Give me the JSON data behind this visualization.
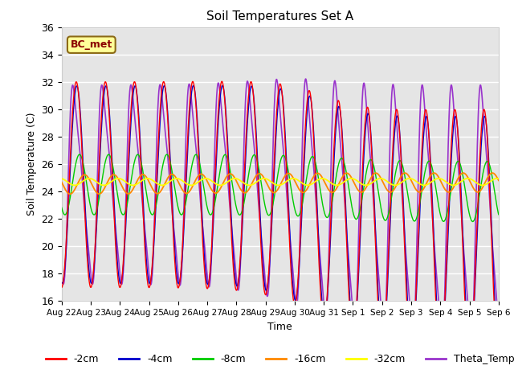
{
  "title": "Soil Temperatures Set A",
  "xlabel": "Time",
  "ylabel": "Soil Temperature (C)",
  "ylim": [
    16,
    36
  ],
  "yticks": [
    16,
    18,
    20,
    22,
    24,
    26,
    28,
    30,
    32,
    34,
    36
  ],
  "annotation": "BC_met",
  "colors": {
    "-2cm": "#ff0000",
    "-4cm": "#0000cc",
    "-8cm": "#00cc00",
    "-16cm": "#ff8800",
    "-32cm": "#ffff00",
    "Theta_Temp": "#9933cc"
  },
  "n_days": 15,
  "xtick_labels": [
    "Aug 22",
    "Aug 23",
    "Aug 24",
    "Aug 25",
    "Aug 26",
    "Aug 27",
    "Aug 28",
    "Aug 29",
    "Aug 30",
    "Aug 31",
    "Sep 1",
    "Sep 2",
    "Sep 3",
    "Sep 4",
    "Sep 5",
    "Sep 6"
  ],
  "bg_color": "#e5e5e5",
  "fig_bg": "#ffffff"
}
